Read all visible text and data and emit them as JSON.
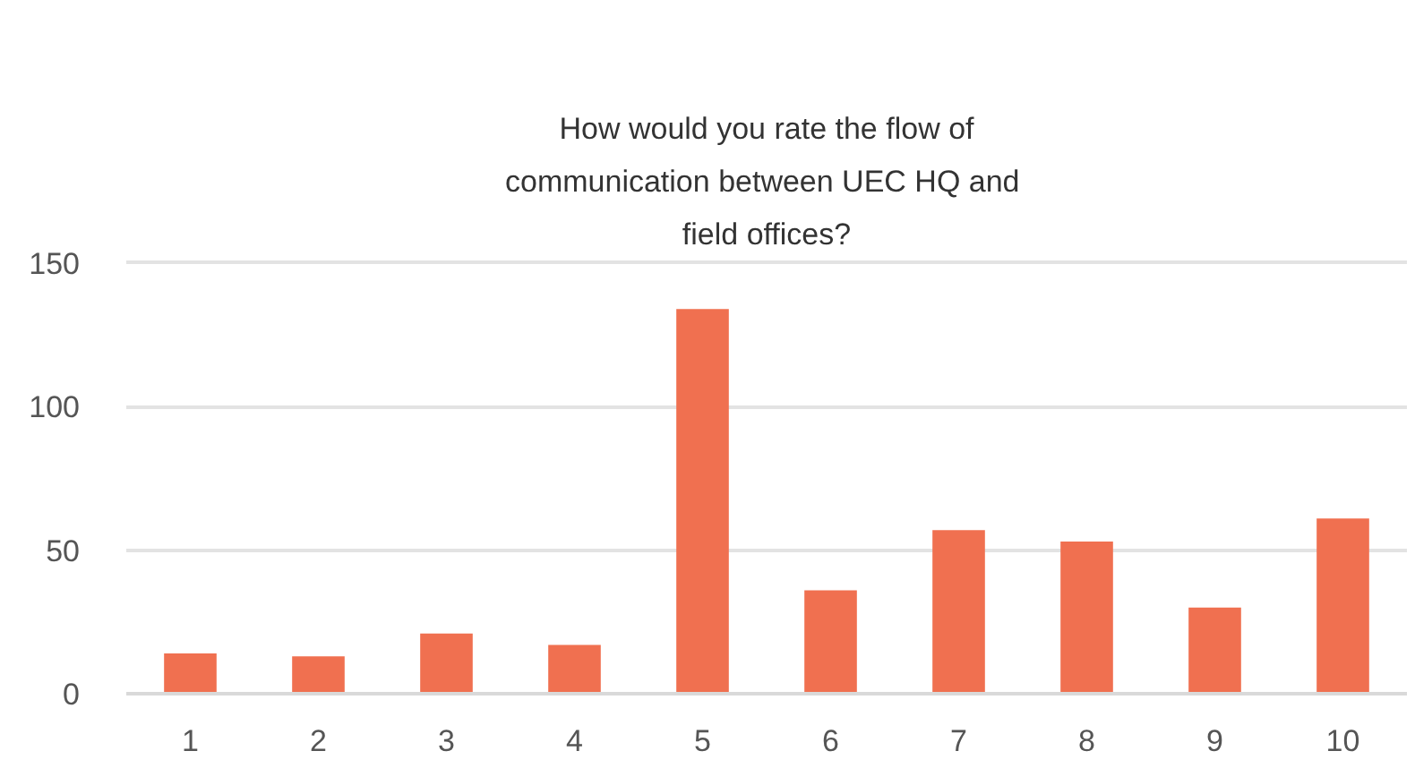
{
  "chart_data": {
    "type": "bar",
    "title": "How would you rate the flow of\ncommunication between UEC  HQ and\nfield offices?",
    "categories": [
      "1",
      "2",
      "3",
      "4",
      "5",
      "6",
      "7",
      "8",
      "9",
      "10"
    ],
    "values": [
      14,
      13,
      21,
      17,
      134,
      36,
      57,
      53,
      30,
      61
    ],
    "color": "#f07050",
    "ylim": [
      0,
      150
    ],
    "yticks": [
      0,
      50,
      100,
      150
    ],
    "grid": "y"
  }
}
